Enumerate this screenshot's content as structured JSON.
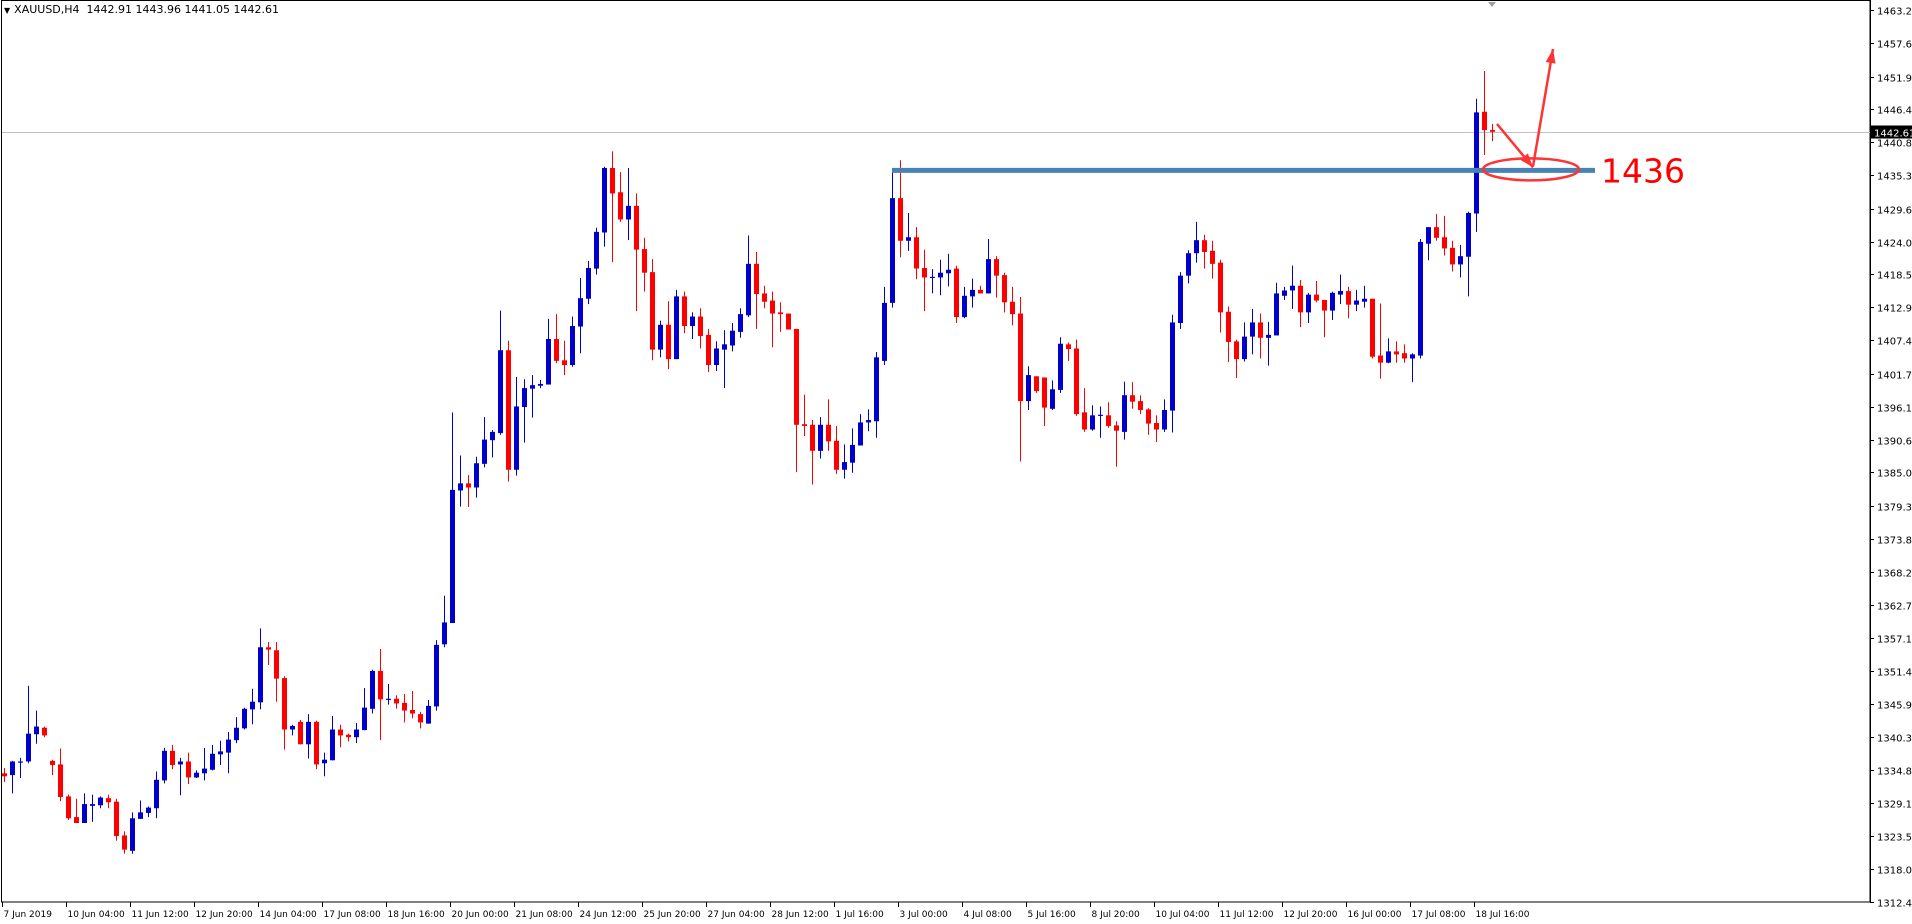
{
  "header": {
    "symbol": "XAUUSD,H4",
    "ohlc_readout": "1442.91 1443.96 1441.05 1442.61",
    "menu_icon": "triangle-down-icon"
  },
  "colors": {
    "bull": "#0000CC",
    "bear": "#FF0000",
    "level_line": "#4682B4",
    "annotation": "#FF3333",
    "current_price_line": "#C0C0C0",
    "axis": "#000000"
  },
  "chart_data": {
    "type": "candlestick",
    "title": "",
    "symbol": "XAUUSD",
    "timeframe": "H4",
    "ylim": [
      1312.45,
      1463.2
    ],
    "grid": false,
    "current_price": 1442.61,
    "current_price_label": "1442.61",
    "y_ticks": [
      "1463.20",
      "1457.65",
      "1451.95",
      "1446.40",
      "1440.85",
      "1435.30",
      "1429.60",
      "1424.05",
      "1418.50",
      "1412.95",
      "1407.40",
      "1401.70",
      "1396.15",
      "1390.60",
      "1385.05",
      "1379.35",
      "1373.80",
      "1368.25",
      "1362.70",
      "1357.15",
      "1351.45",
      "1345.90",
      "1340.35",
      "1334.80",
      "1329.10",
      "1323.55",
      "1318.00",
      "1312.45"
    ],
    "x_ticks": [
      "7 Jun 2019",
      "10 Jun 04:00",
      "11 Jun 12:00",
      "12 Jun 20:00",
      "14 Jun 04:00",
      "17 Jun 08:00",
      "18 Jun 16:00",
      "20 Jun 00:00",
      "21 Jun 08:00",
      "24 Jun 12:00",
      "25 Jun 20:00",
      "27 Jun 04:00",
      "28 Jun 12:00",
      "1 Jul 16:00",
      "3 Jul 00:00",
      "4 Jul 08:00",
      "5 Jul 16:00",
      "8 Jul 20:00",
      "10 Jul 04:00",
      "11 Jul 12:00",
      "12 Jul 20:00",
      "16 Jul 00:00",
      "17 Jul 08:00",
      "18 Jul 16:00"
    ],
    "ohlc_format": [
      "open",
      "high",
      "low",
      "close"
    ],
    "candles": [
      [
        1334.2,
        1335.1,
        1332.7,
        1333.7
      ],
      [
        1333.9,
        1336.3,
        1330.8,
        1336.2
      ],
      [
        1336.1,
        1336.8,
        1333.4,
        1336.2
      ],
      [
        1336.2,
        1349.0,
        1335.9,
        1340.9
      ],
      [
        1340.8,
        1344.8,
        1339.2,
        1342.1
      ],
      [
        1341.9,
        1342.1,
        1340.3,
        1340.6
      ],
      [
        1336.3,
        1336.5,
        1333.9,
        1335.6
      ],
      [
        1335.7,
        1338.4,
        1329.5,
        1330.2
      ],
      [
        1330.3,
        1330.6,
        1326.3,
        1326.6
      ],
      [
        1326.8,
        1329.9,
        1325.8,
        1325.8
      ],
      [
        1325.8,
        1330.8,
        1325.8,
        1329.0
      ],
      [
        1328.7,
        1330.6,
        1326.0,
        1329.0
      ],
      [
        1328.8,
        1330.3,
        1328.3,
        1330.1
      ],
      [
        1330.0,
        1330.6,
        1328.3,
        1329.3
      ],
      [
        1329.4,
        1329.9,
        1322.8,
        1323.6
      ],
      [
        1323.7,
        1324.4,
        1320.6,
        1321.3
      ],
      [
        1321.1,
        1327.6,
        1320.6,
        1326.6
      ],
      [
        1326.5,
        1329.6,
        1326.5,
        1327.6
      ],
      [
        1327.5,
        1328.6,
        1326.8,
        1328.4
      ],
      [
        1328.3,
        1334.5,
        1326.6,
        1333.1
      ],
      [
        1333.0,
        1338.5,
        1332.5,
        1338.0
      ],
      [
        1338.0,
        1339.0,
        1334.9,
        1335.6
      ],
      [
        1335.7,
        1336.8,
        1330.5,
        1336.2
      ],
      [
        1336.2,
        1337.7,
        1332.4,
        1333.5
      ],
      [
        1333.5,
        1334.7,
        1333.4,
        1334.3
      ],
      [
        1334.2,
        1338.5,
        1333.0,
        1335.0
      ],
      [
        1334.8,
        1339.0,
        1334.7,
        1337.5
      ],
      [
        1337.4,
        1339.7,
        1335.6,
        1337.9
      ],
      [
        1337.7,
        1341.2,
        1334.2,
        1339.9
      ],
      [
        1339.8,
        1343.7,
        1339.3,
        1341.9
      ],
      [
        1341.8,
        1345.3,
        1341.6,
        1345.1
      ],
      [
        1345.0,
        1348.5,
        1342.5,
        1346.3
      ],
      [
        1346.2,
        1358.7,
        1345.0,
        1355.5
      ],
      [
        1355.5,
        1356.4,
        1352.5,
        1355.1
      ],
      [
        1355.0,
        1356.4,
        1346.3,
        1350.2
      ],
      [
        1350.3,
        1350.6,
        1338.2,
        1341.6
      ],
      [
        1341.6,
        1342.4,
        1340.6,
        1342.2
      ],
      [
        1342.9,
        1343.2,
        1339.1,
        1339.1
      ],
      [
        1339.1,
        1344.2,
        1336.7,
        1342.9
      ],
      [
        1342.9,
        1343.1,
        1334.9,
        1335.7
      ],
      [
        1335.9,
        1337.7,
        1333.7,
        1336.5
      ],
      [
        1336.4,
        1343.9,
        1336.4,
        1341.6
      ],
      [
        1341.6,
        1342.4,
        1338.6,
        1340.6
      ],
      [
        1340.7,
        1340.9,
        1339.6,
        1340.3
      ],
      [
        1340.3,
        1342.7,
        1339.3,
        1341.6
      ],
      [
        1341.5,
        1348.6,
        1341.5,
        1345.3
      ],
      [
        1345.1,
        1351.7,
        1344.3,
        1351.5
      ],
      [
        1351.5,
        1355.2,
        1339.8,
        1346.7
      ],
      [
        1346.7,
        1349.3,
        1345.8,
        1346.8
      ],
      [
        1346.8,
        1347.4,
        1345.1,
        1346.0
      ],
      [
        1346.1,
        1347.6,
        1342.8,
        1344.8
      ],
      [
        1344.9,
        1348.1,
        1343.5,
        1344.3
      ],
      [
        1344.2,
        1344.6,
        1341.8,
        1342.8
      ],
      [
        1342.6,
        1346.6,
        1342.6,
        1345.6
      ],
      [
        1345.5,
        1356.7,
        1344.8,
        1355.9
      ],
      [
        1356.0,
        1364.2,
        1355.5,
        1359.7
      ],
      [
        1359.6,
        1395.2,
        1359.6,
        1382.1
      ],
      [
        1382.0,
        1387.9,
        1379.3,
        1383.2
      ],
      [
        1383.2,
        1384.6,
        1379.2,
        1382.5
      ],
      [
        1382.5,
        1387.7,
        1380.8,
        1386.6
      ],
      [
        1386.5,
        1394.4,
        1385.9,
        1390.6
      ],
      [
        1390.5,
        1392.2,
        1387.6,
        1391.9
      ],
      [
        1391.7,
        1412.4,
        1391.4,
        1405.7
      ],
      [
        1405.7,
        1407.3,
        1383.5,
        1385.5
      ],
      [
        1385.5,
        1401.2,
        1384.5,
        1396.2
      ],
      [
        1396.1,
        1400.8,
        1390.1,
        1399.3
      ],
      [
        1399.2,
        1401.5,
        1394.3,
        1399.8
      ],
      [
        1399.7,
        1400.7,
        1399.3,
        1400.0
      ],
      [
        1399.9,
        1411.0,
        1399.9,
        1407.6
      ],
      [
        1407.6,
        1411.8,
        1403.5,
        1403.9
      ],
      [
        1404.0,
        1407.3,
        1401.5,
        1403.2
      ],
      [
        1403.2,
        1411.4,
        1402.9,
        1409.8
      ],
      [
        1409.7,
        1417.9,
        1405.2,
        1414.5
      ],
      [
        1414.4,
        1420.8,
        1413.5,
        1419.6
      ],
      [
        1419.5,
        1426.4,
        1418.5,
        1425.7
      ],
      [
        1425.6,
        1436.7,
        1423.2,
        1436.5
      ],
      [
        1436.5,
        1439.3,
        1420.6,
        1432.2
      ],
      [
        1432.4,
        1435.8,
        1427.4,
        1427.8
      ],
      [
        1427.8,
        1436.5,
        1424.3,
        1430.1
      ],
      [
        1430.1,
        1432.2,
        1412.3,
        1422.7
      ],
      [
        1422.8,
        1424.7,
        1415.6,
        1418.8
      ],
      [
        1418.9,
        1421.1,
        1404.0,
        1405.8
      ],
      [
        1405.8,
        1410.7,
        1404.5,
        1410.0
      ],
      [
        1410.0,
        1414.0,
        1402.5,
        1404.2
      ],
      [
        1404.2,
        1415.9,
        1404.2,
        1414.8
      ],
      [
        1414.8,
        1415.6,
        1408.6,
        1409.8
      ],
      [
        1409.8,
        1412.1,
        1407.6,
        1411.4
      ],
      [
        1411.4,
        1412.8,
        1406.0,
        1408.1
      ],
      [
        1408.3,
        1409.3,
        1402.0,
        1403.2
      ],
      [
        1403.2,
        1407.2,
        1402.2,
        1406.0
      ],
      [
        1405.8,
        1409.1,
        1399.3,
        1406.7
      ],
      [
        1406.5,
        1410.3,
        1405.5,
        1409.0
      ],
      [
        1408.8,
        1412.8,
        1407.8,
        1411.8
      ],
      [
        1411.6,
        1425.1,
        1411.3,
        1420.3
      ],
      [
        1420.3,
        1422.3,
        1409.3,
        1415.2
      ],
      [
        1415.3,
        1416.6,
        1412.8,
        1413.9
      ],
      [
        1414.1,
        1415.6,
        1406.2,
        1411.9
      ],
      [
        1412.1,
        1413.8,
        1408.8,
        1411.8
      ],
      [
        1411.9,
        1411.9,
        1409.2,
        1409.2
      ],
      [
        1409.3,
        1409.3,
        1385.1,
        1393.1
      ],
      [
        1393.2,
        1398.2,
        1391.2,
        1392.9
      ],
      [
        1393.1,
        1393.9,
        1383.0,
        1388.7
      ],
      [
        1388.7,
        1394.4,
        1387.4,
        1393.1
      ],
      [
        1393.1,
        1397.4,
        1388.7,
        1390.3
      ],
      [
        1390.4,
        1392.9,
        1384.8,
        1385.5
      ],
      [
        1385.5,
        1389.8,
        1384.0,
        1386.8
      ],
      [
        1386.7,
        1392.5,
        1385.0,
        1389.7
      ],
      [
        1389.6,
        1394.9,
        1389.6,
        1393.5
      ],
      [
        1393.5,
        1395.7,
        1392.0,
        1393.9
      ],
      [
        1393.7,
        1405.4,
        1390.9,
        1404.5
      ],
      [
        1403.9,
        1416.4,
        1403.2,
        1413.7
      ],
      [
        1413.7,
        1436.1,
        1412.9,
        1431.4
      ],
      [
        1431.4,
        1437.8,
        1421.4,
        1424.2
      ],
      [
        1424.2,
        1428.9,
        1422.5,
        1424.8
      ],
      [
        1424.8,
        1426.5,
        1417.7,
        1419.5
      ],
      [
        1419.6,
        1422.7,
        1412.3,
        1418.0
      ],
      [
        1418.0,
        1419.4,
        1415.3,
        1418.1
      ],
      [
        1418.0,
        1421.0,
        1415.0,
        1418.8
      ],
      [
        1418.7,
        1422.0,
        1416.5,
        1419.3
      ],
      [
        1419.5,
        1420.0,
        1410.3,
        1411.3
      ],
      [
        1411.3,
        1416.4,
        1411.1,
        1414.9
      ],
      [
        1414.8,
        1417.8,
        1412.9,
        1415.9
      ],
      [
        1415.9,
        1416.6,
        1415.3,
        1415.3
      ],
      [
        1415.3,
        1424.5,
        1415.3,
        1421.1
      ],
      [
        1421.1,
        1421.6,
        1414.6,
        1418.3
      ],
      [
        1418.4,
        1418.8,
        1412.1,
        1413.8
      ],
      [
        1413.9,
        1416.4,
        1409.9,
        1411.8
      ],
      [
        1411.9,
        1414.7,
        1386.9,
        1397.1
      ],
      [
        1397.1,
        1403.0,
        1395.6,
        1401.5
      ],
      [
        1401.3,
        1401.3,
        1398.5,
        1398.8
      ],
      [
        1401.1,
        1401.1,
        1392.9,
        1396.0
      ],
      [
        1395.8,
        1400.6,
        1395.6,
        1399.1
      ],
      [
        1399.0,
        1407.9,
        1398.5,
        1406.8
      ],
      [
        1406.7,
        1407.0,
        1403.9,
        1405.9
      ],
      [
        1406.0,
        1407.5,
        1394.6,
        1394.9
      ],
      [
        1395.2,
        1399.3,
        1391.9,
        1392.3
      ],
      [
        1392.3,
        1396.4,
        1392.1,
        1394.7
      ],
      [
        1394.6,
        1396.2,
        1390.9,
        1394.8
      ],
      [
        1394.7,
        1396.9,
        1392.6,
        1392.9
      ],
      [
        1393.0,
        1393.7,
        1386.0,
        1392.1
      ],
      [
        1391.9,
        1400.4,
        1390.6,
        1398.1
      ],
      [
        1398.1,
        1400.3,
        1395.8,
        1397.0
      ],
      [
        1397.1,
        1398.1,
        1394.9,
        1395.6
      ],
      [
        1395.7,
        1395.9,
        1391.4,
        1393.3
      ],
      [
        1393.4,
        1394.7,
        1390.2,
        1392.3
      ],
      [
        1392.3,
        1397.4,
        1391.9,
        1395.6
      ],
      [
        1395.5,
        1411.7,
        1391.8,
        1410.4
      ],
      [
        1410.3,
        1418.9,
        1409.3,
        1418.3
      ],
      [
        1418.3,
        1422.6,
        1417.0,
        1422.1
      ],
      [
        1422.1,
        1427.4,
        1420.5,
        1424.3
      ],
      [
        1424.3,
        1425.2,
        1419.5,
        1422.3
      ],
      [
        1422.5,
        1424.2,
        1417.8,
        1420.3
      ],
      [
        1420.5,
        1421.0,
        1408.7,
        1412.1
      ],
      [
        1412.2,
        1413.1,
        1403.7,
        1407.1
      ],
      [
        1407.2,
        1407.5,
        1401.0,
        1404.2
      ],
      [
        1404.2,
        1410.4,
        1403.8,
        1408.0
      ],
      [
        1408.0,
        1412.7,
        1405.0,
        1410.4
      ],
      [
        1410.4,
        1411.9,
        1404.3,
        1407.8
      ],
      [
        1407.8,
        1410.5,
        1403.1,
        1408.3
      ],
      [
        1408.2,
        1417.1,
        1408.2,
        1415.3
      ],
      [
        1414.9,
        1416.4,
        1414.2,
        1415.8
      ],
      [
        1415.8,
        1420.0,
        1412.7,
        1416.6
      ],
      [
        1416.6,
        1417.6,
        1409.6,
        1412.1
      ],
      [
        1412.1,
        1415.4,
        1410.3,
        1415.1
      ],
      [
        1415.1,
        1417.4,
        1413.8,
        1414.1
      ],
      [
        1414.2,
        1414.2,
        1407.9,
        1412.4
      ],
      [
        1412.4,
        1415.6,
        1410.8,
        1415.4
      ],
      [
        1415.1,
        1418.5,
        1413.5,
        1415.7
      ],
      [
        1415.7,
        1416.4,
        1411.1,
        1413.4
      ],
      [
        1413.4,
        1415.9,
        1412.3,
        1414.1
      ],
      [
        1413.9,
        1416.6,
        1412.9,
        1414.4
      ],
      [
        1414.4,
        1414.4,
        1404.3,
        1404.6
      ],
      [
        1404.8,
        1413.6,
        1400.9,
        1403.6
      ],
      [
        1403.6,
        1407.7,
        1403.5,
        1405.5
      ],
      [
        1405.5,
        1407.2,
        1403.6,
        1405.0
      ],
      [
        1405.2,
        1406.7,
        1403.6,
        1404.3
      ],
      [
        1404.3,
        1405.2,
        1400.3,
        1405.0
      ],
      [
        1404.8,
        1424.5,
        1404.3,
        1424.0
      ],
      [
        1423.7,
        1426.5,
        1420.9,
        1426.5
      ],
      [
        1426.5,
        1428.7,
        1424.2,
        1424.7
      ],
      [
        1424.8,
        1428.4,
        1421.7,
        1422.9
      ],
      [
        1423.0,
        1424.2,
        1419.0,
        1420.2
      ],
      [
        1420.2,
        1423.5,
        1418.0,
        1421.6
      ],
      [
        1421.5,
        1429.1,
        1414.8,
        1428.9
      ],
      [
        1428.8,
        1448.2,
        1425.7,
        1445.9
      ],
      [
        1446.0,
        1452.9,
        1438.7,
        1442.9
      ],
      [
        1442.91,
        1443.96,
        1441.05,
        1442.61
      ]
    ],
    "annotations": {
      "level_price": 1436.1,
      "level_label": "1436",
      "level_start_candle": 111
    }
  }
}
